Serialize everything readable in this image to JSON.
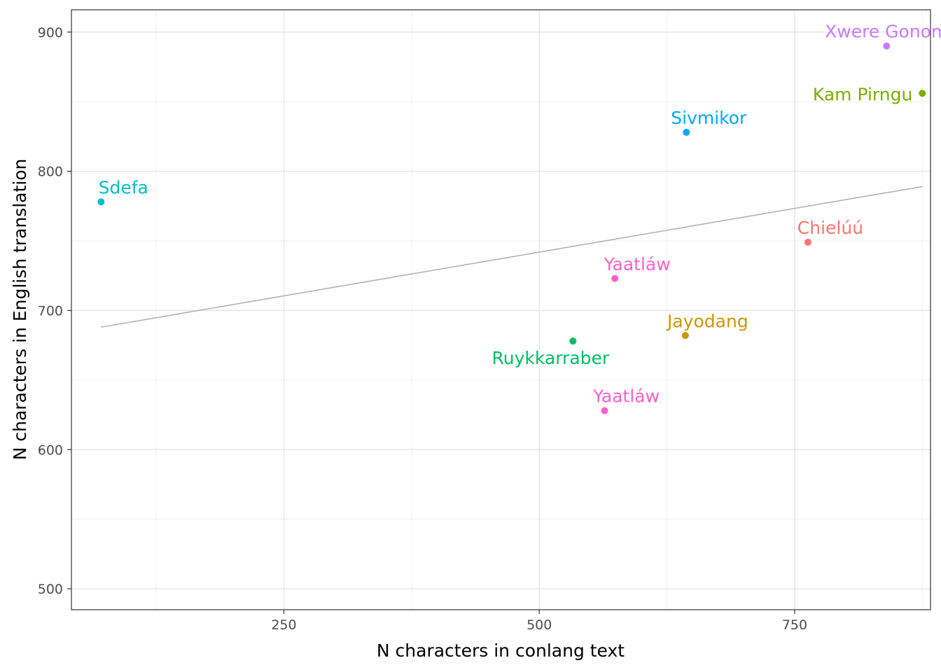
{
  "chart_data": {
    "type": "scatter",
    "title": "",
    "xlabel": "N characters in conlang text",
    "ylabel": "N characters in English translation",
    "xlim": [
      42,
      883
    ],
    "ylim": [
      485,
      916
    ],
    "xticks": [
      250,
      500,
      750
    ],
    "yticks": [
      500,
      600,
      700,
      800,
      900
    ],
    "grid": true,
    "legend": "none",
    "points": [
      {
        "label": "Xwere Gonom",
        "x": 840,
        "y": 890,
        "color": "#C77CFF"
      },
      {
        "label": "Kam Pirngu",
        "x": 875,
        "y": 856,
        "color": "#7CAE00"
      },
      {
        "label": "Sivmikor",
        "x": 644,
        "y": 828,
        "color": "#00A9FF"
      },
      {
        "label": "Sdefa",
        "x": 71,
        "y": 778,
        "color": "#00BFC4"
      },
      {
        "label": "Chielúú",
        "x": 763,
        "y": 749,
        "color": "#F8766D"
      },
      {
        "label": "Yaatláw",
        "x": 574,
        "y": 723,
        "color": "#FF61CC"
      },
      {
        "label": "Jayodang",
        "x": 643,
        "y": 682,
        "color": "#CD9600"
      },
      {
        "label": "Ruykkarraber",
        "x": 533,
        "y": 678,
        "color": "#00BE67"
      },
      {
        "label": "Yaatláw",
        "x": 564,
        "y": 628,
        "color": "#FF61CC"
      }
    ],
    "fit_line": {
      "x": [
        71,
        875
      ],
      "y": [
        688,
        789
      ],
      "color": "#b3b3b3"
    }
  }
}
